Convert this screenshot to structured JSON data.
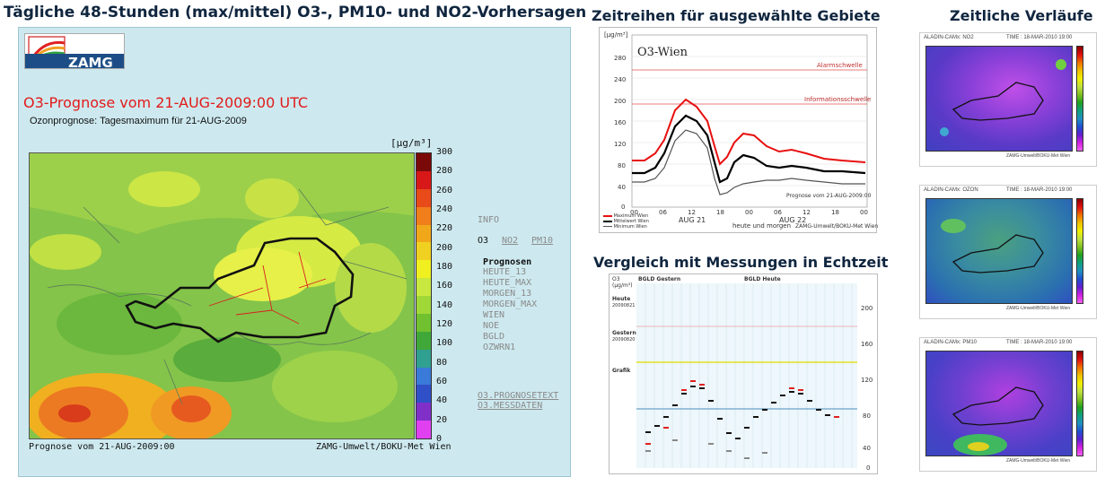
{
  "headings": {
    "main": "Tägliche 48-Stunden (max/mittel) O3-, PM10- und NO2-Vorhersagen",
    "timeseries": "Zeitreihen für ausgewählte Gebiete",
    "comparison": "Vergleich mit Messungen in Echtzeit",
    "temporal": "Zeitliche Verläufe"
  },
  "logo": {
    "text": "ZAMG"
  },
  "forecast": {
    "title": "O3-Prognose vom 21-AUG-2009:00 UTC",
    "subtitle": "Ozonprognose: Tagesmaximum für 21-AUG-2009",
    "unit": "[µg/m³]",
    "footer_left": "Prognose vom 21-AUG-2009:00",
    "footer_right": "ZAMG-Umwelt/BOKU-Met Wien",
    "colorbar_ticks": [
      "300",
      "280",
      "260",
      "240",
      "220",
      "200",
      "180",
      "160",
      "140",
      "120",
      "100",
      "80",
      "60",
      "40",
      "20",
      "0"
    ],
    "colorbar_colors": [
      "#7a0a0a",
      "#d81818",
      "#e84a1a",
      "#f07e1a",
      "#f0a81a",
      "#f0d020",
      "#f0f020",
      "#c8e840",
      "#a0d838",
      "#70c030",
      "#40a838",
      "#30a090",
      "#3a7ad8",
      "#3050c8",
      "#8030c8",
      "#e040f0"
    ]
  },
  "nav": {
    "info": "INFO",
    "o3": "O3",
    "no2": "NO2",
    "pm10": "PM10",
    "prognosen_label": "Prognosen",
    "prognosen": [
      "HEUTE_13",
      "HEUTE_MAX",
      "MORGEN_13",
      "MORGEN_MAX",
      "WIEN",
      "NOE",
      "BGLD",
      "OZWRN1"
    ],
    "links": [
      "O3.PROGNOSETEXT",
      "O3.MESSDATEN"
    ]
  },
  "timeseries": {
    "label": "O3-Wien",
    "unit": "[µg/m³]",
    "threshold_upper": "Alarmschwelle",
    "threshold_lower": "Informationsschwelle",
    "x_ticks": [
      "00",
      "06",
      "12",
      "18",
      "00",
      "06",
      "12",
      "18",
      "00"
    ],
    "day_labels": [
      "AUG 21",
      "AUG 22"
    ],
    "xlabel": "heute und morgen",
    "prognose_note": "Prognose vom 21-AUG-2009:00",
    "footer": "ZAMG-Umwelt/BOKU-Met Wien",
    "legend": [
      "Maximum Wien",
      "Mittelwert Wien",
      "Minimum Wien"
    ],
    "y_ticks": [
      "280",
      "240",
      "200",
      "160",
      "120",
      "80",
      "40",
      "0"
    ]
  },
  "comparison": {
    "corner": "O3 (µg/m³)",
    "header_left": "BGLD  Gestern",
    "header_right": "BGLD  Heute",
    "row_labels": [
      "Heute",
      "20090821",
      "Gestern",
      "20090820",
      "Grafik"
    ],
    "y_ticks": [
      "200",
      "160",
      "120",
      "80",
      "40",
      "0"
    ]
  },
  "right_panels": [
    {
      "title": "ALADIN-CAMx: NO2",
      "time": "TIME : 18-MAR-2010 19:00",
      "footer": "ZAMG-Umwelt/BOKU-Met Wien"
    },
    {
      "title": "ALADIN-CAMx: OZON",
      "time": "TIME : 18-MAR-2010 19:00",
      "footer": "ZAMG-Umwelt/BOKU-Met Wien"
    },
    {
      "title": "ALADIN-CAMx: PM10",
      "time": "TIME : 18-MAR-2010 19:00",
      "footer": "ZAMG-Umwelt/BOKU-Met Wien"
    }
  ],
  "colors": {
    "heading": "#10263f",
    "forecast_title": "#e21a1a",
    "panel_bg": "#cde9ef"
  }
}
